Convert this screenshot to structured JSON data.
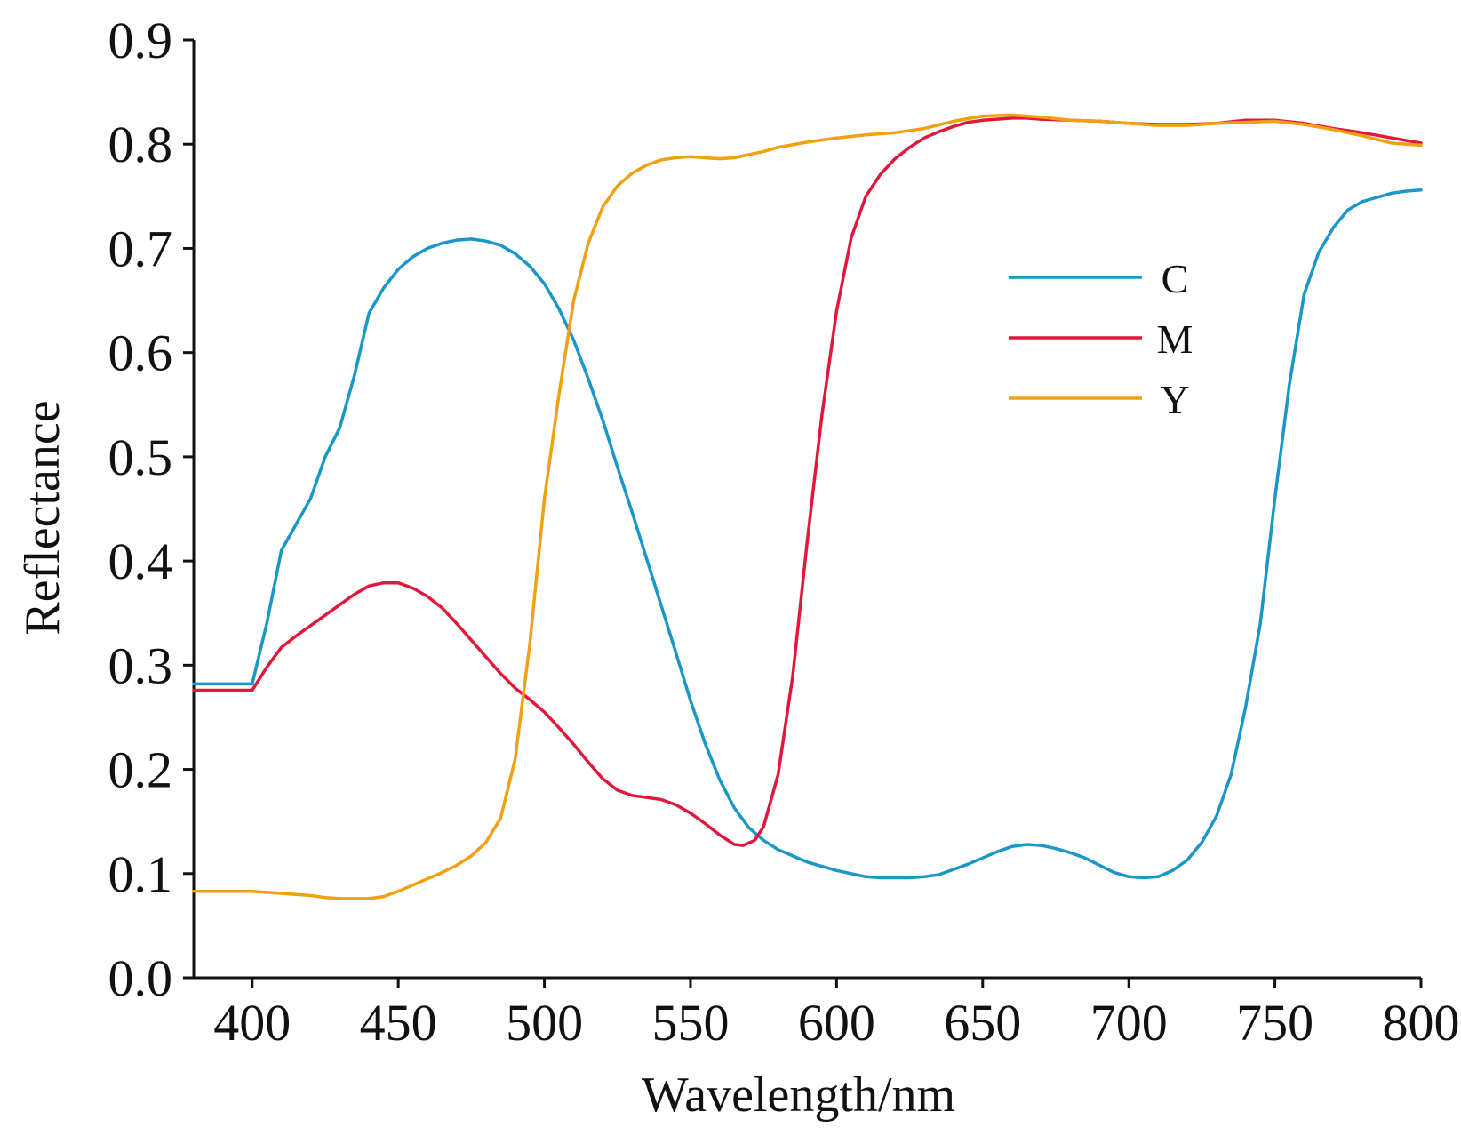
{
  "chart_data": {
    "type": "line",
    "title": "",
    "xlabel": "Wavelength/nm",
    "ylabel": "Reflectance",
    "xlim": [
      380,
      800
    ],
    "ylim": [
      0.0,
      0.9
    ],
    "xticks": [
      400,
      450,
      500,
      550,
      600,
      650,
      700,
      750,
      800
    ],
    "xtick_labels": [
      "400",
      "450",
      "500",
      "550",
      "600",
      "650",
      "700",
      "750",
      "800"
    ],
    "yticks": [
      0.0,
      0.1,
      0.2,
      0.3,
      0.4,
      0.5,
      0.6,
      0.7,
      0.8,
      0.9
    ],
    "ytick_labels": [
      "0.0",
      "0.1",
      "0.2",
      "0.3",
      "0.4",
      "0.5",
      "0.6",
      "0.7",
      "0.8",
      "0.9"
    ],
    "grid": false,
    "legend_position": "right",
    "series": [
      {
        "name": "C",
        "color": "#1a96c8",
        "points": [
          [
            380,
            0.282
          ],
          [
            400,
            0.282
          ],
          [
            405,
            0.34
          ],
          [
            410,
            0.41
          ],
          [
            415,
            0.435
          ],
          [
            420,
            0.46
          ],
          [
            425,
            0.5
          ],
          [
            430,
            0.528
          ],
          [
            435,
            0.578
          ],
          [
            440,
            0.638
          ],
          [
            445,
            0.662
          ],
          [
            450,
            0.68
          ],
          [
            455,
            0.692
          ],
          [
            460,
            0.7
          ],
          [
            465,
            0.705
          ],
          [
            470,
            0.708
          ],
          [
            475,
            0.709
          ],
          [
            480,
            0.707
          ],
          [
            485,
            0.703
          ],
          [
            490,
            0.695
          ],
          [
            495,
            0.683
          ],
          [
            500,
            0.666
          ],
          [
            505,
            0.642
          ],
          [
            510,
            0.612
          ],
          [
            515,
            0.575
          ],
          [
            520,
            0.535
          ],
          [
            525,
            0.49
          ],
          [
            530,
            0.447
          ],
          [
            535,
            0.402
          ],
          [
            540,
            0.357
          ],
          [
            545,
            0.312
          ],
          [
            550,
            0.266
          ],
          [
            555,
            0.225
          ],
          [
            560,
            0.19
          ],
          [
            565,
            0.163
          ],
          [
            570,
            0.144
          ],
          [
            575,
            0.132
          ],
          [
            580,
            0.123
          ],
          [
            585,
            0.117
          ],
          [
            590,
            0.111
          ],
          [
            595,
            0.107
          ],
          [
            600,
            0.103
          ],
          [
            605,
            0.1
          ],
          [
            610,
            0.097
          ],
          [
            615,
            0.096
          ],
          [
            620,
            0.096
          ],
          [
            625,
            0.096
          ],
          [
            630,
            0.097
          ],
          [
            635,
            0.099
          ],
          [
            640,
            0.104
          ],
          [
            645,
            0.109
          ],
          [
            650,
            0.115
          ],
          [
            655,
            0.121
          ],
          [
            660,
            0.126
          ],
          [
            665,
            0.128
          ],
          [
            670,
            0.127
          ],
          [
            675,
            0.124
          ],
          [
            680,
            0.12
          ],
          [
            685,
            0.115
          ],
          [
            690,
            0.108
          ],
          [
            695,
            0.101
          ],
          [
            700,
            0.097
          ],
          [
            705,
            0.096
          ],
          [
            710,
            0.097
          ],
          [
            715,
            0.103
          ],
          [
            720,
            0.113
          ],
          [
            725,
            0.13
          ],
          [
            730,
            0.155
          ],
          [
            735,
            0.195
          ],
          [
            740,
            0.26
          ],
          [
            745,
            0.34
          ],
          [
            750,
            0.46
          ],
          [
            755,
            0.57
          ],
          [
            760,
            0.656
          ],
          [
            765,
            0.696
          ],
          [
            770,
            0.72
          ],
          [
            775,
            0.737
          ],
          [
            780,
            0.745
          ],
          [
            785,
            0.749
          ],
          [
            790,
            0.753
          ],
          [
            795,
            0.755
          ],
          [
            800,
            0.756
          ]
        ]
      },
      {
        "name": "M",
        "color": "#e0183c",
        "points": [
          [
            380,
            0.276
          ],
          [
            400,
            0.276
          ],
          [
            405,
            0.298
          ],
          [
            410,
            0.317
          ],
          [
            415,
            0.328
          ],
          [
            420,
            0.338
          ],
          [
            425,
            0.348
          ],
          [
            430,
            0.358
          ],
          [
            435,
            0.368
          ],
          [
            440,
            0.376
          ],
          [
            445,
            0.379
          ],
          [
            450,
            0.379
          ],
          [
            455,
            0.374
          ],
          [
            460,
            0.366
          ],
          [
            465,
            0.355
          ],
          [
            470,
            0.34
          ],
          [
            475,
            0.324
          ],
          [
            480,
            0.308
          ],
          [
            485,
            0.292
          ],
          [
            490,
            0.278
          ],
          [
            495,
            0.267
          ],
          [
            500,
            0.255
          ],
          [
            505,
            0.24
          ],
          [
            510,
            0.224
          ],
          [
            515,
            0.207
          ],
          [
            520,
            0.191
          ],
          [
            525,
            0.18
          ],
          [
            530,
            0.175
          ],
          [
            535,
            0.173
          ],
          [
            540,
            0.171
          ],
          [
            545,
            0.166
          ],
          [
            550,
            0.158
          ],
          [
            555,
            0.148
          ],
          [
            560,
            0.137
          ],
          [
            565,
            0.128
          ],
          [
            568,
            0.127
          ],
          [
            572,
            0.132
          ],
          [
            575,
            0.145
          ],
          [
            580,
            0.195
          ],
          [
            585,
            0.29
          ],
          [
            590,
            0.42
          ],
          [
            595,
            0.54
          ],
          [
            600,
            0.64
          ],
          [
            605,
            0.71
          ],
          [
            610,
            0.75
          ],
          [
            615,
            0.771
          ],
          [
            620,
            0.786
          ],
          [
            625,
            0.797
          ],
          [
            630,
            0.806
          ],
          [
            635,
            0.812
          ],
          [
            640,
            0.817
          ],
          [
            645,
            0.821
          ],
          [
            650,
            0.823
          ],
          [
            655,
            0.824
          ],
          [
            660,
            0.825
          ],
          [
            665,
            0.825
          ],
          [
            670,
            0.824
          ],
          [
            680,
            0.823
          ],
          [
            690,
            0.822
          ],
          [
            700,
            0.82
          ],
          [
            710,
            0.819
          ],
          [
            720,
            0.819
          ],
          [
            730,
            0.82
          ],
          [
            740,
            0.823
          ],
          [
            750,
            0.823
          ],
          [
            760,
            0.82
          ],
          [
            770,
            0.815
          ],
          [
            780,
            0.811
          ],
          [
            790,
            0.806
          ],
          [
            800,
            0.801
          ]
        ]
      },
      {
        "name": "Y",
        "color": "#f0a010",
        "points": [
          [
            380,
            0.083
          ],
          [
            400,
            0.083
          ],
          [
            405,
            0.082
          ],
          [
            410,
            0.081
          ],
          [
            415,
            0.08
          ],
          [
            420,
            0.079
          ],
          [
            425,
            0.077
          ],
          [
            430,
            0.076
          ],
          [
            435,
            0.076
          ],
          [
            440,
            0.076
          ],
          [
            445,
            0.078
          ],
          [
            450,
            0.083
          ],
          [
            455,
            0.089
          ],
          [
            460,
            0.095
          ],
          [
            465,
            0.101
          ],
          [
            470,
            0.108
          ],
          [
            475,
            0.117
          ],
          [
            480,
            0.13
          ],
          [
            485,
            0.153
          ],
          [
            490,
            0.21
          ],
          [
            495,
            0.32
          ],
          [
            500,
            0.46
          ],
          [
            505,
            0.56
          ],
          [
            510,
            0.65
          ],
          [
            515,
            0.705
          ],
          [
            520,
            0.74
          ],
          [
            525,
            0.76
          ],
          [
            530,
            0.772
          ],
          [
            535,
            0.78
          ],
          [
            540,
            0.785
          ],
          [
            545,
            0.787
          ],
          [
            550,
            0.788
          ],
          [
            555,
            0.787
          ],
          [
            560,
            0.786
          ],
          [
            565,
            0.787
          ],
          [
            570,
            0.79
          ],
          [
            575,
            0.793
          ],
          [
            580,
            0.797
          ],
          [
            590,
            0.802
          ],
          [
            600,
            0.806
          ],
          [
            610,
            0.809
          ],
          [
            620,
            0.811
          ],
          [
            630,
            0.815
          ],
          [
            640,
            0.822
          ],
          [
            650,
            0.827
          ],
          [
            660,
            0.828
          ],
          [
            670,
            0.826
          ],
          [
            680,
            0.823
          ],
          [
            690,
            0.822
          ],
          [
            700,
            0.82
          ],
          [
            710,
            0.818
          ],
          [
            720,
            0.818
          ],
          [
            730,
            0.82
          ],
          [
            740,
            0.821
          ],
          [
            750,
            0.822
          ],
          [
            760,
            0.819
          ],
          [
            770,
            0.814
          ],
          [
            780,
            0.808
          ],
          [
            790,
            0.801
          ],
          [
            800,
            0.799
          ]
        ]
      }
    ]
  }
}
